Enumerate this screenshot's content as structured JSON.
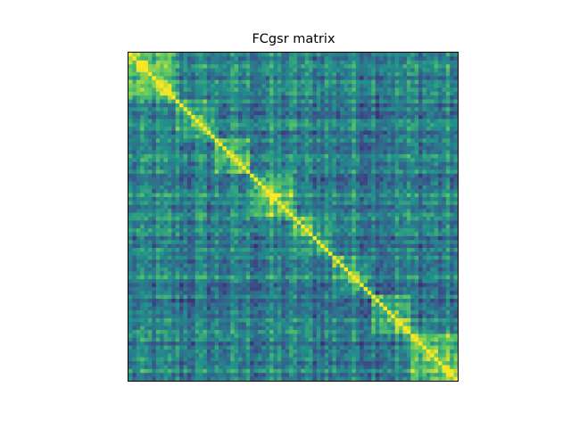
{
  "chart_data": {
    "type": "heatmap",
    "title": "FCgsr matrix",
    "xlabel": "",
    "ylabel": "",
    "n_regions": 84,
    "colormap": "viridis",
    "colorscale": [
      "#440154",
      "#3b528b",
      "#21918c",
      "#5ec962",
      "#fde725"
    ],
    "value_range": [
      -1,
      1
    ],
    "diagonal_value": 1.0,
    "ticks_visible": false,
    "colorbar": false,
    "diagonal_blocks": [
      {
        "start": 0,
        "end": 12,
        "mean_value": 0.45
      },
      {
        "start": 12,
        "end": 22,
        "mean_value": 0.3
      },
      {
        "start": 22,
        "end": 31,
        "mean_value": 0.35
      },
      {
        "start": 31,
        "end": 42,
        "mean_value": 0.5
      },
      {
        "start": 42,
        "end": 52,
        "mean_value": 0.25
      },
      {
        "start": 52,
        "end": 62,
        "mean_value": 0.35
      },
      {
        "start": 62,
        "end": 72,
        "mean_value": 0.45
      },
      {
        "start": 72,
        "end": 84,
        "mean_value": 0.55
      }
    ]
  }
}
